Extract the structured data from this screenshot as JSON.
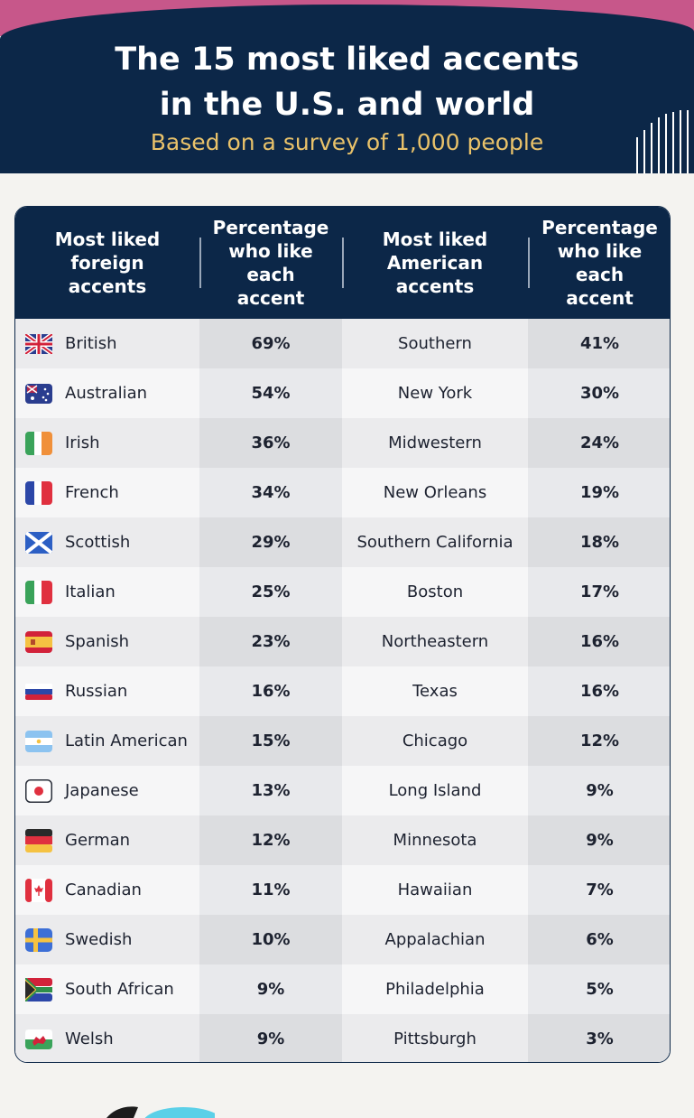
{
  "header": {
    "title_line1": "The 15 most liked accents",
    "title_line2": "in the U.S. and world",
    "subtitle": "Based on a survey of 1,000 people"
  },
  "colors": {
    "header_bg": "#0c2748",
    "accent_pink": "#c7578a",
    "subtitle_gold": "#e9c26a"
  },
  "chart_data": {
    "type": "table",
    "title": "The 15 most liked accents in the U.S. and world",
    "subtitle": "Based on a survey of 1,000 people",
    "columns": [
      "Most liked foreign accents",
      "Percentage who like each accent",
      "Most liked American accents",
      "Percentage who like each accent"
    ],
    "header_lines": [
      [
        "Most liked",
        "foreign",
        "accents"
      ],
      [
        "Percentage",
        "who like",
        "each",
        "accent"
      ],
      [
        "Most liked",
        "American",
        "accents"
      ],
      [
        "Percentage",
        "who like",
        "each",
        "accent"
      ]
    ],
    "rows": [
      {
        "foreign": "British",
        "flag": "uk-flag-icon",
        "foreign_pct": "69%",
        "american": "Southern",
        "american_pct": "41%"
      },
      {
        "foreign": "Australian",
        "flag": "australia-flag-icon",
        "foreign_pct": "54%",
        "american": "New York",
        "american_pct": "30%"
      },
      {
        "foreign": "Irish",
        "flag": "ireland-flag-icon",
        "foreign_pct": "36%",
        "american": "Midwestern",
        "american_pct": "24%"
      },
      {
        "foreign": "French",
        "flag": "france-flag-icon",
        "foreign_pct": "34%",
        "american": "New Orleans",
        "american_pct": "19%"
      },
      {
        "foreign": "Scottish",
        "flag": "scotland-flag-icon",
        "foreign_pct": "29%",
        "american": "Southern California",
        "american_pct": "18%"
      },
      {
        "foreign": "Italian",
        "flag": "italy-flag-icon",
        "foreign_pct": "25%",
        "american": "Boston",
        "american_pct": "17%"
      },
      {
        "foreign": "Spanish",
        "flag": "spain-flag-icon",
        "foreign_pct": "23%",
        "american": "Northeastern",
        "american_pct": "16%"
      },
      {
        "foreign": "Russian",
        "flag": "russia-flag-icon",
        "foreign_pct": "16%",
        "american": "Texas",
        "american_pct": "16%"
      },
      {
        "foreign": "Latin American",
        "flag": "argentina-flag-icon",
        "foreign_pct": "15%",
        "american": "Chicago",
        "american_pct": "12%"
      },
      {
        "foreign": "Japanese",
        "flag": "japan-flag-icon",
        "foreign_pct": "13%",
        "american": "Long Island",
        "american_pct": "9%"
      },
      {
        "foreign": "German",
        "flag": "germany-flag-icon",
        "foreign_pct": "12%",
        "american": "Minnesota",
        "american_pct": "9%"
      },
      {
        "foreign": "Canadian",
        "flag": "canada-flag-icon",
        "foreign_pct": "11%",
        "american": "Hawaiian",
        "american_pct": "7%"
      },
      {
        "foreign": "Swedish",
        "flag": "sweden-flag-icon",
        "foreign_pct": "10%",
        "american": "Appalachian",
        "american_pct": "6%"
      },
      {
        "foreign": "South African",
        "flag": "south-africa-flag-icon",
        "foreign_pct": "9%",
        "american": "Philadelphia",
        "american_pct": "5%"
      },
      {
        "foreign": "Welsh",
        "flag": "wales-flag-icon",
        "foreign_pct": "9%",
        "american": "Pittsburgh",
        "american_pct": "3%"
      }
    ]
  }
}
